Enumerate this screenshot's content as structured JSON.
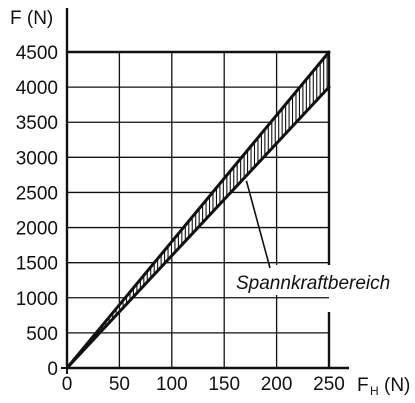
{
  "chart_data": {
    "type": "line",
    "title": "",
    "ylabel": "F (N)",
    "xlabel_main": "F",
    "xlabel_sub": "H",
    "xlabel_unit": "(N)",
    "xlim": [
      0,
      250
    ],
    "ylim": [
      0,
      4500
    ],
    "x_ticks": [
      0,
      50,
      100,
      150,
      200,
      250
    ],
    "y_ticks": [
      0,
      500,
      1000,
      1500,
      2000,
      2500,
      3000,
      3500,
      4000,
      4500
    ],
    "grid": true,
    "series": [
      {
        "x": [
          0,
          250
        ],
        "y": [
          0,
          4500
        ]
      },
      {
        "x": [
          0,
          250
        ],
        "y": [
          0,
          4000
        ]
      }
    ],
    "annotations": [
      {
        "text": "Spannkraftbereich",
        "points_to": {
          "x": 175,
          "y": 2950
        }
      }
    ],
    "colors": {
      "line": "#111111",
      "grid": "#111111",
      "background": "#ffffff"
    }
  }
}
